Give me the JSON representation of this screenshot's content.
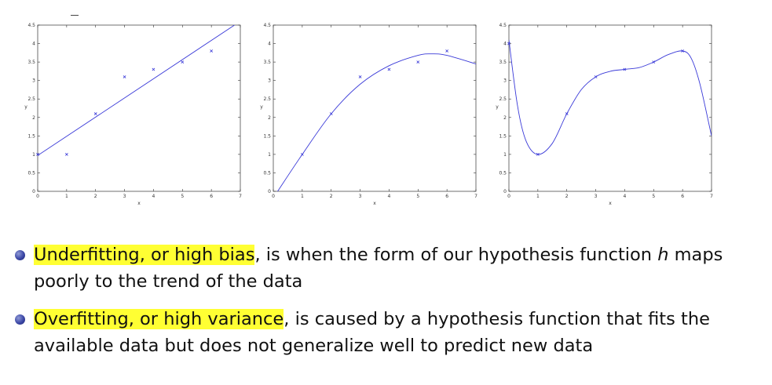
{
  "chart_data": [
    {
      "type": "scatter",
      "xlabel": "x",
      "ylabel": "y",
      "xlim": [
        0,
        7
      ],
      "ylim": [
        0,
        4.5
      ],
      "x_ticks": [
        "0",
        "1",
        "2",
        "3",
        "4",
        "5",
        "6",
        "7"
      ],
      "y_ticks": [
        "0",
        "0.5",
        "1",
        "1.5",
        "2",
        "2.5",
        "3",
        "3.5",
        "4",
        "4.5"
      ],
      "points": [
        [
          0,
          1
        ],
        [
          1,
          1
        ],
        [
          2,
          2.1
        ],
        [
          3,
          3.1
        ],
        [
          4,
          3.3
        ],
        [
          5,
          3.5
        ],
        [
          6,
          3.8
        ]
      ],
      "fit": {
        "kind": "linear",
        "line": [
          [
            0,
            0.97
          ],
          [
            6.8,
            4.5
          ]
        ]
      }
    },
    {
      "type": "scatter",
      "xlabel": "x",
      "ylabel": "y",
      "xlim": [
        0,
        7
      ],
      "ylim": [
        0,
        4.5
      ],
      "x_ticks": [
        "0",
        "1",
        "2",
        "3",
        "4",
        "5",
        "6",
        "7"
      ],
      "y_ticks": [
        "0",
        "0.5",
        "1",
        "1.5",
        "2",
        "2.5",
        "3",
        "3.5",
        "4",
        "4.5"
      ],
      "points": [
        [
          1,
          1
        ],
        [
          2,
          2.1
        ],
        [
          3,
          3.1
        ],
        [
          4,
          3.3
        ],
        [
          5,
          3.5
        ],
        [
          6,
          3.8
        ]
      ],
      "fit": {
        "kind": "quadratic",
        "curve": [
          [
            0.15,
            0
          ],
          [
            1,
            1
          ],
          [
            2,
            2.1
          ],
          [
            3,
            2.9
          ],
          [
            4,
            3.4
          ],
          [
            5,
            3.68
          ],
          [
            5.5,
            3.72
          ],
          [
            6,
            3.68
          ],
          [
            7,
            3.45
          ]
        ]
      }
    },
    {
      "type": "scatter",
      "xlabel": "x",
      "ylabel": "y",
      "xlim": [
        0,
        7
      ],
      "ylim": [
        0,
        4.5
      ],
      "x_ticks": [
        "0",
        "1",
        "2",
        "3",
        "4",
        "5",
        "6",
        "7"
      ],
      "y_ticks": [
        "0",
        "0.5",
        "1",
        "1.5",
        "2",
        "2.5",
        "3",
        "3.5",
        "4",
        "4.5"
      ],
      "points": [
        [
          0,
          4
        ],
        [
          1,
          1
        ],
        [
          2,
          2.1
        ],
        [
          3,
          3.1
        ],
        [
          4,
          3.3
        ],
        [
          5,
          3.5
        ],
        [
          6,
          3.8
        ]
      ],
      "fit": {
        "kind": "high-order polynomial",
        "curve": [
          [
            0,
            4.1
          ],
          [
            0.3,
            2.3
          ],
          [
            0.6,
            1.35
          ],
          [
            1,
            1
          ],
          [
            1.5,
            1.3
          ],
          [
            2,
            2.1
          ],
          [
            2.5,
            2.75
          ],
          [
            3,
            3.1
          ],
          [
            3.5,
            3.25
          ],
          [
            4,
            3.3
          ],
          [
            4.5,
            3.35
          ],
          [
            5,
            3.5
          ],
          [
            5.5,
            3.7
          ],
          [
            6,
            3.8
          ],
          [
            6.3,
            3.6
          ],
          [
            6.6,
            2.9
          ],
          [
            7,
            1.5
          ]
        ]
      }
    }
  ],
  "colors": {
    "series": "#3a3ad8",
    "highlight": "#ffff33",
    "bullet": "#3b47a6"
  },
  "bullets": [
    {
      "highlight": "Underfitting, or high bias",
      "text": ", is when the form of our hypothesis function",
      "italic": "h",
      "text2": " maps poorly to the trend of the data"
    },
    {
      "highlight": "Overfitting, or high variance",
      "text": ", is caused by a hypothesis function that fits the available data but does not generalize well to predict new data"
    }
  ]
}
